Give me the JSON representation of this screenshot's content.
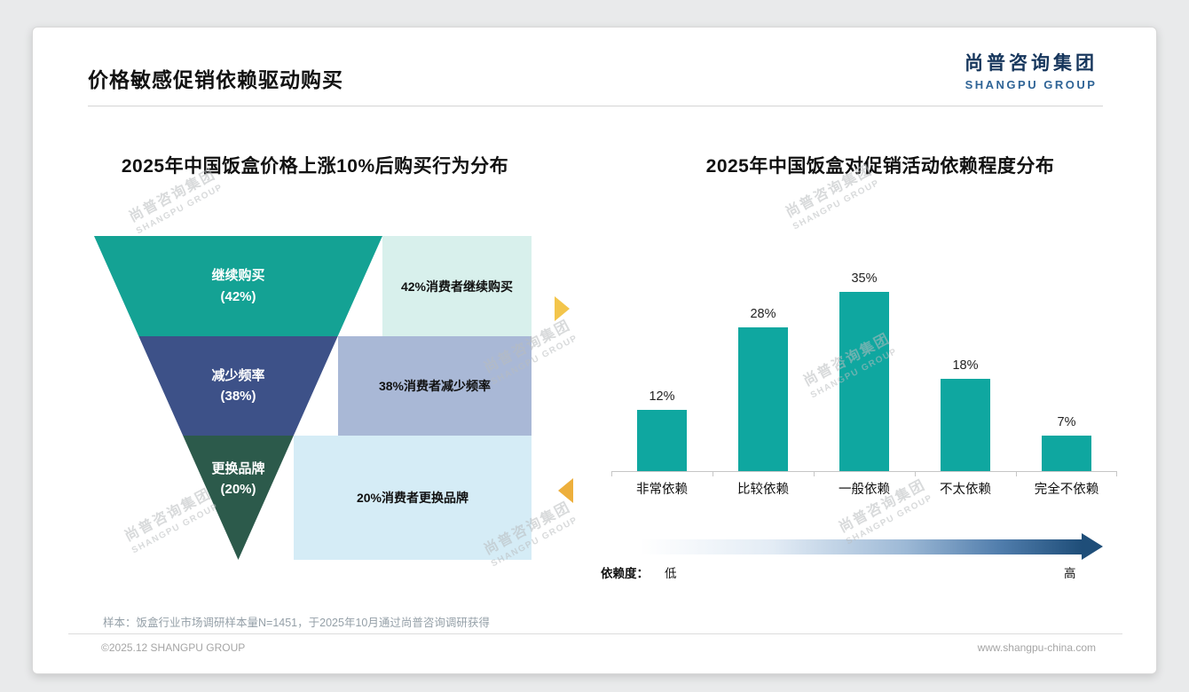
{
  "page": {
    "title": "价格敏感促销依赖驱动购买",
    "sample_note": "样本：饭盒行业市场调研样本量N=1451，于2025年10月通过尚普咨询调研获得",
    "copyright": "©2025.12 SHANGPU GROUP",
    "website": "www.shangpu-china.com"
  },
  "logo": {
    "cn": "尚普咨询集团",
    "en": "SHANGPU GROUP"
  },
  "watermark": {
    "cn": "尚普咨询集团",
    "en": "SHANGPU GROUP"
  },
  "funnel_chart": {
    "title": "2025年中国饭盒价格上涨10%后购买行为分布",
    "levels": [
      {
        "name": "继续购买",
        "pct_label": "(42%)",
        "value": 42,
        "annotation": "42%消费者继续购买",
        "color": "#14A294",
        "annotation_bg": "#D8F0EC"
      },
      {
        "name": "减少频率",
        "pct_label": "(38%)",
        "value": 38,
        "annotation": "38%消费者减少频率",
        "color": "#3D5188",
        "annotation_bg": "#A9B8D6"
      },
      {
        "name": "更换品牌",
        "pct_label": "(20%)",
        "value": 20,
        "annotation": "20%消费者更换品牌",
        "color": "#2C5A4B",
        "annotation_bg": "#D5ECF6"
      }
    ],
    "accent_arrow_colors": {
      "right": "#F3C54B",
      "left": "#EDAF3C"
    }
  },
  "bar_chart": {
    "title": "2025年中国饭盒对促销活动依赖程度分布",
    "bar_color": "#0FA7A0",
    "categories": [
      "非常依赖",
      "比较依赖",
      "一般依赖",
      "不太依赖",
      "完全不依赖"
    ],
    "values": [
      12,
      28,
      35,
      18,
      7
    ],
    "value_labels": [
      "12%",
      "28%",
      "35%",
      "18%",
      "7%"
    ],
    "legend": {
      "axis_label": "依赖度：",
      "low": "低",
      "high": "高"
    }
  },
  "chart_data": [
    {
      "type": "funnel",
      "title": "2025年中国饭盒价格上涨10%后购买行为分布",
      "categories": [
        "继续购买",
        "减少频率",
        "更换品牌"
      ],
      "values": [
        42,
        38,
        20
      ],
      "unit": "%",
      "annotations": [
        "42%消费者继续购买",
        "38%消费者减少频率",
        "20%消费者更换品牌"
      ]
    },
    {
      "type": "bar",
      "title": "2025年中国饭盒对促销活动依赖程度分布",
      "categories": [
        "非常依赖",
        "比较依赖",
        "一般依赖",
        "不太依赖",
        "完全不依赖"
      ],
      "values": [
        12,
        28,
        35,
        18,
        7
      ],
      "unit": "%",
      "xlabel": "依赖度（低→高）",
      "ylabel": "",
      "ylim": [
        0,
        40
      ],
      "grid": false,
      "data_labels": true,
      "legend_position": "none"
    }
  ]
}
